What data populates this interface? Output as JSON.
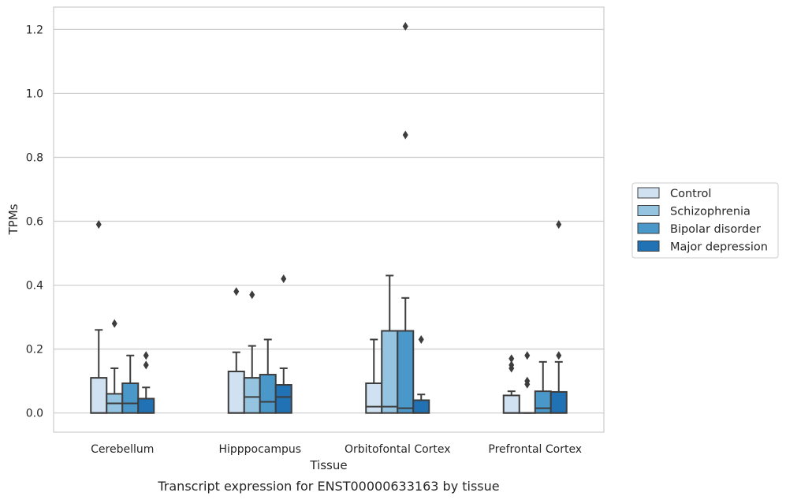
{
  "chart_data": {
    "type": "box",
    "title": "",
    "caption": "Transcript expression for ENST00000633163 by tissue",
    "xlabel": "Tissue",
    "ylabel": "TPMs",
    "ylim": [
      -0.06,
      1.27
    ],
    "yticks": [
      0.0,
      0.2,
      0.4,
      0.6,
      0.8,
      1.0,
      1.2
    ],
    "ytick_labels": [
      "0.0",
      "0.2",
      "0.4",
      "0.6",
      "0.8",
      "1.0",
      "1.2"
    ],
    "grid": "horizontal",
    "legend_position": "right",
    "categories": [
      "Cerebellum",
      "Hipppocampus",
      "Orbitofontal Cortex",
      "Prefrontal Cortex"
    ],
    "series": [
      {
        "name": "Control",
        "color": "#d0e1f2",
        "boxes": [
          {
            "whislo": 0.0,
            "q1": 0.0,
            "med": 0.0,
            "q3": 0.11,
            "whishi": 0.26,
            "fliers": [
              0.59
            ]
          },
          {
            "whislo": 0.0,
            "q1": 0.0,
            "med": 0.0,
            "q3": 0.13,
            "whishi": 0.19,
            "fliers": [
              0.38
            ]
          },
          {
            "whislo": 0.0,
            "q1": 0.0,
            "med": 0.02,
            "q3": 0.093,
            "whishi": 0.23,
            "fliers": []
          },
          {
            "whislo": 0.0,
            "q1": 0.0,
            "med": 0.0,
            "q3": 0.055,
            "whishi": 0.068,
            "fliers": [
              0.14,
              0.15,
              0.17
            ]
          }
        ]
      },
      {
        "name": "Schizophrenia",
        "color": "#94c4df",
        "boxes": [
          {
            "whislo": 0.0,
            "q1": 0.0,
            "med": 0.03,
            "q3": 0.06,
            "whishi": 0.14,
            "fliers": [
              0.28
            ]
          },
          {
            "whislo": 0.0,
            "q1": 0.0,
            "med": 0.05,
            "q3": 0.11,
            "whishi": 0.21,
            "fliers": [
              0.37
            ]
          },
          {
            "whislo": 0.0,
            "q1": 0.0,
            "med": 0.02,
            "q3": 0.257,
            "whishi": 0.43,
            "fliers": []
          },
          {
            "whislo": 0.0,
            "q1": 0.0,
            "med": 0.0,
            "q3": 0.0,
            "whishi": 0.0,
            "fliers": [
              0.09,
              0.1,
              0.18
            ]
          }
        ]
      },
      {
        "name": "Bipolar disorder",
        "color": "#4a98c9",
        "boxes": [
          {
            "whislo": 0.0,
            "q1": 0.0,
            "med": 0.03,
            "q3": 0.093,
            "whishi": 0.18,
            "fliers": []
          },
          {
            "whislo": 0.0,
            "q1": 0.0,
            "med": 0.035,
            "q3": 0.12,
            "whishi": 0.23,
            "fliers": []
          },
          {
            "whislo": 0.0,
            "q1": 0.0,
            "med": 0.015,
            "q3": 0.257,
            "whishi": 0.36,
            "fliers": [
              0.87,
              1.21
            ]
          },
          {
            "whislo": 0.0,
            "q1": 0.0,
            "med": 0.015,
            "q3": 0.068,
            "whishi": 0.16,
            "fliers": []
          }
        ]
      },
      {
        "name": "Major depression",
        "color": "#2171b5",
        "boxes": [
          {
            "whislo": 0.0,
            "q1": 0.0,
            "med": 0.0,
            "q3": 0.045,
            "whishi": 0.08,
            "fliers": [
              0.15,
              0.18
            ]
          },
          {
            "whislo": 0.0,
            "q1": 0.0,
            "med": 0.05,
            "q3": 0.088,
            "whishi": 0.14,
            "fliers": [
              0.42
            ]
          },
          {
            "whislo": 0.0,
            "q1": 0.0,
            "med": 0.0,
            "q3": 0.04,
            "whishi": 0.058,
            "fliers": [
              0.23
            ]
          },
          {
            "whislo": 0.0,
            "q1": 0.0,
            "med": 0.0,
            "q3": 0.066,
            "whishi": 0.16,
            "fliers": [
              0.18,
              0.59
            ]
          }
        ]
      }
    ]
  }
}
